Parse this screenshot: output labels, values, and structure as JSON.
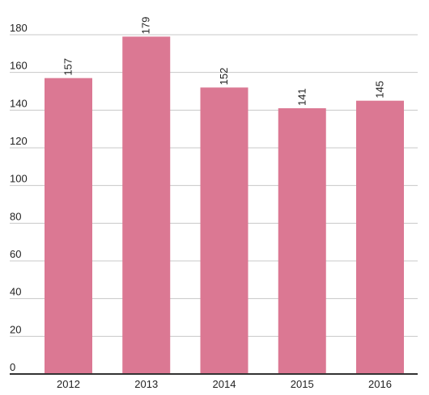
{
  "chart_data": {
    "type": "bar",
    "categories": [
      "2012",
      "2013",
      "2014",
      "2015",
      "2016"
    ],
    "values": [
      157,
      179,
      152,
      141,
      145
    ],
    "data_labels": [
      "157",
      "179",
      "152",
      "141",
      "145"
    ],
    "title": "",
    "xlabel": "",
    "ylabel": "",
    "ylim": [
      0,
      180
    ],
    "y_ticks": [
      0,
      20,
      40,
      60,
      80,
      100,
      120,
      140,
      160,
      180
    ],
    "y_tick_labels": [
      "0",
      "20",
      "40",
      "60",
      "80",
      "100",
      "120",
      "140",
      "160",
      "180"
    ],
    "grid": true,
    "legend": "none",
    "bar_color": "#db7893"
  }
}
